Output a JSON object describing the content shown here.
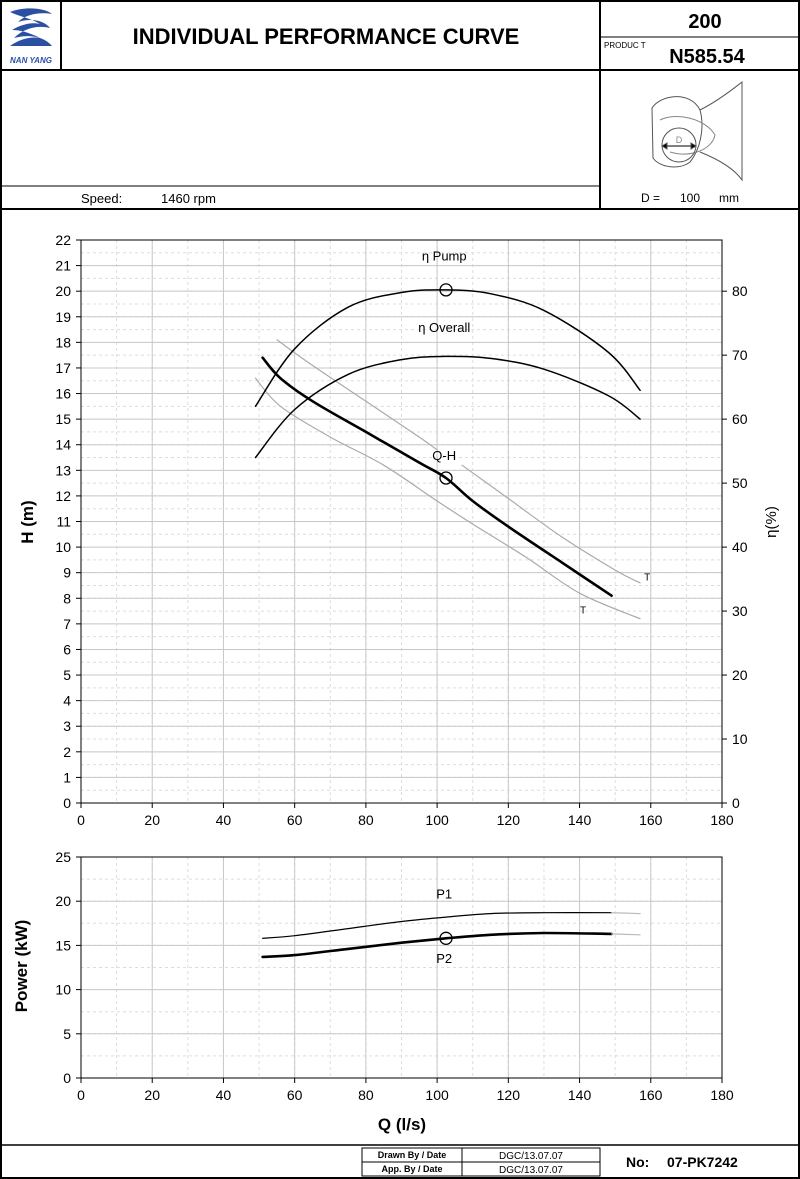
{
  "header": {
    "logo_text": "NAN YANG",
    "title": "INDIVIDUAL PERFORMANCE  CURVE",
    "model_top": "200",
    "product_label": "PRODUC  T",
    "product_code": "N585.54"
  },
  "info": {
    "speed_label": "Speed:",
    "speed_value": "1460  rpm",
    "diameter_label": "D =",
    "diameter_value": "100",
    "diameter_unit": "mm",
    "diagram_letter": "D"
  },
  "footer": {
    "drawn_label": "Drawn By / Date",
    "drawn_value": "DGC/13.07.07",
    "approved_label": "App. By / Date",
    "approved_value": "DGC/13.07.07",
    "no_label": "No:",
    "no_value": "07-PK7242"
  },
  "chart_data": [
    {
      "type": "line",
      "xlabel": "",
      "ylabel": "H (m)",
      "y2label": "η(%)",
      "xlim": [
        0,
        180
      ],
      "ylim": [
        0,
        22
      ],
      "y2lim": [
        0,
        88
      ],
      "xticks": [
        0,
        20,
        40,
        60,
        80,
        100,
        120,
        140,
        160,
        180
      ],
      "yticks": [
        0,
        1,
        2,
        3,
        4,
        5,
        6,
        7,
        8,
        9,
        10,
        11,
        12,
        13,
        14,
        15,
        16,
        17,
        18,
        19,
        20,
        21,
        22
      ],
      "y2ticks": [
        0,
        10,
        20,
        30,
        40,
        50,
        60,
        70,
        80
      ],
      "grid": true,
      "duty_point": {
        "x": 102.5,
        "h": 12.7,
        "eta_pump": 80.2
      },
      "series": [
        {
          "name": "Q-H",
          "axis": "left",
          "style": "main",
          "x": [
            51,
            56,
            65,
            80,
            95,
            102.5,
            110,
            120,
            135,
            149
          ],
          "y": [
            17.4,
            16.6,
            15.7,
            14.5,
            13.3,
            12.7,
            11.8,
            10.8,
            9.4,
            8.1
          ]
        },
        {
          "name": "",
          "axis": "left",
          "style": "thin",
          "x": [
            49,
            56,
            70,
            85,
            100,
            110,
            125,
            140,
            157
          ],
          "y": [
            16.6,
            15.5,
            14.3,
            13.2,
            11.8,
            10.9,
            9.6,
            8.2,
            7.2
          ]
        },
        {
          "name": "",
          "axis": "left",
          "style": "thin",
          "x": [
            55,
            65,
            80,
            95,
            100
          ],
          "y": [
            18.1,
            17.1,
            15.7,
            14.3,
            13.8
          ]
        },
        {
          "name": "",
          "axis": "left",
          "style": "thin",
          "x": [
            107,
            120,
            135,
            150,
            157
          ],
          "y": [
            13.2,
            11.9,
            10.4,
            9.1,
            8.6
          ]
        },
        {
          "name": "η Pump",
          "axis": "right",
          "style": "eta",
          "x": [
            49,
            60,
            75,
            90,
            102.5,
            115,
            130,
            148,
            157
          ],
          "y": [
            62,
            71,
            77.5,
            79.8,
            80.2,
            79.6,
            77,
            70.5,
            64.5
          ]
        },
        {
          "name": "η Overall",
          "axis": "right",
          "style": "eta",
          "x": [
            49,
            60,
            75,
            90,
            102,
            115,
            130,
            148,
            157
          ],
          "y": [
            54,
            61.5,
            67,
            69.3,
            69.8,
            69.5,
            67.8,
            63.7,
            60
          ]
        }
      ],
      "annotations": [
        {
          "text": "Q-H",
          "x": 102,
          "y": 13.4
        },
        {
          "text": "η Pump",
          "x": 102,
          "y": 21.2
        },
        {
          "text": "η Overall",
          "x": 102,
          "y": 18.4
        },
        {
          "text": "T",
          "x": 159,
          "y": 8.7
        },
        {
          "text": "T",
          "x": 141,
          "y": 7.4
        }
      ]
    },
    {
      "type": "line",
      "xlabel": "Q (l/s)",
      "ylabel": "Power (kW)",
      "xlim": [
        0,
        180
      ],
      "ylim": [
        0,
        25
      ],
      "xticks": [
        0,
        20,
        40,
        60,
        80,
        100,
        120,
        140,
        160,
        180
      ],
      "yticks": [
        0,
        5,
        10,
        15,
        20,
        25
      ],
      "grid": true,
      "duty_point": {
        "x": 102.5,
        "y": 15.8
      },
      "series": [
        {
          "name": "P1",
          "style": "thin-black",
          "x": [
            51,
            60,
            75,
            90,
            102.5,
            115,
            130,
            149
          ],
          "y": [
            15.8,
            16.1,
            16.9,
            17.7,
            18.2,
            18.6,
            18.7,
            18.7
          ]
        },
        {
          "name": "P1",
          "style": "ext",
          "x": [
            149,
            157
          ],
          "y": [
            18.7,
            18.6
          ]
        },
        {
          "name": "P2",
          "style": "bold",
          "x": [
            51,
            60,
            75,
            90,
            102.5,
            115,
            130,
            149
          ],
          "y": [
            13.7,
            13.9,
            14.6,
            15.3,
            15.8,
            16.2,
            16.4,
            16.3
          ]
        },
        {
          "name": "P2",
          "style": "ext",
          "x": [
            149,
            157
          ],
          "y": [
            16.3,
            16.2
          ]
        }
      ],
      "annotations": [
        {
          "text": "P1",
          "x": 102,
          "y": 20.3
        },
        {
          "text": "P2",
          "x": 102,
          "y": 13.0
        }
      ]
    }
  ]
}
